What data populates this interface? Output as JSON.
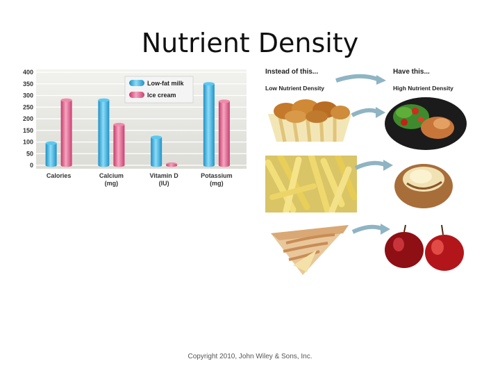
{
  "slide": {
    "title": "Nutrient Density",
    "copyright": "Copyright 2010, John Wiley & Sons, Inc."
  },
  "comparison": {
    "instead_label": "Instead of this...",
    "have_label": "Have this...",
    "low_label": "Low Nutrient Density",
    "high_label": "High Nutrient Density",
    "pairs": [
      {
        "low": "fried-chicken-nuggets",
        "high": "salad-and-chicken-plate"
      },
      {
        "low": "french-fries",
        "high": "baked-potato"
      },
      {
        "low": "apple-pie-slice",
        "high": "red-apples"
      }
    ]
  },
  "chart_data": {
    "type": "bar",
    "title": "",
    "categories": [
      "Calories",
      "Calcium\n(mg)",
      "Vitamin D\n(IU)",
      "Potassium\n(mg)"
    ],
    "series": [
      {
        "name": "Low-fat milk",
        "color": "#3db4e6",
        "values": [
          95,
          280,
          120,
          350
        ]
      },
      {
        "name": "Ice cream",
        "color": "#e0608a",
        "values": [
          280,
          175,
          5,
          275
        ]
      }
    ],
    "yticks": [
      0,
      50,
      100,
      150,
      200,
      250,
      300,
      350,
      400
    ],
    "ylim": [
      0,
      400
    ],
    "grid": true,
    "legend": "top-center"
  }
}
